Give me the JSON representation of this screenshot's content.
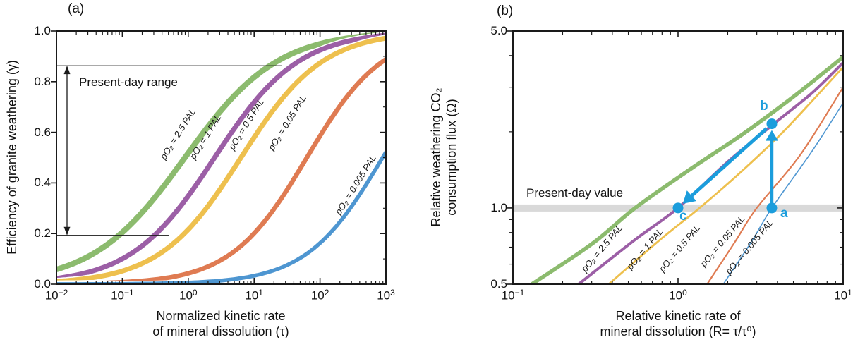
{
  "figure": {
    "background": "#ffffff",
    "text_color": "#111111",
    "axis_color": "#1a1a1a"
  },
  "colors": {
    "green": "#8CBB6E",
    "purple": "#9C5FA6",
    "yellow": "#EEC04E",
    "orange": "#DF7B52",
    "blue": "#4E96D1",
    "annotation_blue": "#1B9DDC",
    "band_gray": "#D9D9D9",
    "halo_white": "#ffffff"
  },
  "panel_a": {
    "letter": "(a)",
    "ylabel": "Efficiency of granite weathering (γ)",
    "xlabel_line1": "Normalized kinetic rate",
    "xlabel_line2": "of mineral dissolution (τ)",
    "range_label": "Present-day range",
    "range": {
      "low": 0.2,
      "high": 0.86
    },
    "yticks": [
      {
        "v": 1.0,
        "label": "1.0"
      },
      {
        "v": 0.8,
        "label": "0.8"
      },
      {
        "v": 0.6,
        "label": "0.6"
      },
      {
        "v": 0.4,
        "label": "0.4"
      },
      {
        "v": 0.2,
        "label": "0.2"
      },
      {
        "v": 0.0,
        "label": "0.0"
      }
    ],
    "xticks": [
      {
        "exp": -2,
        "base": "10",
        "sup": "−2"
      },
      {
        "exp": -1,
        "base": "10",
        "sup": "−1"
      },
      {
        "exp": 0,
        "base": "10",
        "sup": "0"
      },
      {
        "exp": 1,
        "base": "10",
        "sup": "1"
      },
      {
        "exp": 2,
        "base": "10",
        "sup": "2"
      },
      {
        "exp": 3,
        "base": "10",
        "sup": "3"
      }
    ],
    "curves": [
      {
        "id": "pO2-2.5PAL",
        "label": "pO₂ = 2.5 PAL",
        "color_key": "green",
        "mid": -0.05,
        "k": 0.62,
        "lw": 8.0
      },
      {
        "id": "pO2-1PAL",
        "label": "pO₂ = 1 PAL",
        "color_key": "purple",
        "mid": 0.4,
        "k": 0.68,
        "lw": 7.0
      },
      {
        "id": "pO2-0.5PAL",
        "label": "pO₂ = 0.5 PAL",
        "color_key": "yellow",
        "mid": 0.8,
        "k": 0.7,
        "lw": 7.0
      },
      {
        "id": "pO2-0.05PAL",
        "label": "pO₂ = 0.05 PAL",
        "color_key": "orange",
        "mid": 1.8,
        "k": 0.75,
        "lw": 6.5
      },
      {
        "id": "pO2-0.005PAL",
        "label": "pO₂ = 0.005 PAL",
        "color_key": "blue",
        "mid": 2.95,
        "k": 0.75,
        "lw": 5.5
      }
    ]
  },
  "panel_b": {
    "letter": "(b)",
    "ylabel_line1": "Relative weathering CO₂",
    "ylabel_line2": "consumption flux (Ω)",
    "xlabel_line1": "Relative kinetic rate of",
    "xlabel_line2": "mineral dissolution (R= τ/τ⁰)",
    "band_label": "Present-day value",
    "band_value": 1.0,
    "yticks": [
      {
        "v": 5.0,
        "label": "5.0"
      },
      {
        "v": 1.0,
        "label": "1.0"
      },
      {
        "v": 0.5,
        "label": "0.5"
      }
    ],
    "xticks": [
      {
        "exp": -1,
        "base": "10",
        "sup": "−1"
      },
      {
        "exp": 0,
        "base": "10",
        "sup": "0"
      },
      {
        "exp": 1,
        "base": "10",
        "sup": "1"
      }
    ],
    "curves": [
      {
        "id": "pO2-2.5PAL",
        "label": "pO₂ = 2.5 PAL",
        "color_key": "green",
        "lw": 5.5,
        "points": [
          [
            0.13,
            0.5
          ],
          [
            0.3,
            0.72
          ],
          [
            0.55,
            1.0
          ],
          [
            1.2,
            1.43
          ],
          [
            2.5,
            1.97
          ],
          [
            5,
            2.75
          ],
          [
            10,
            3.95
          ]
        ]
      },
      {
        "id": "pO2-1PAL",
        "label": "pO₂ = 1 PAL",
        "color_key": "purple",
        "lw": 4.0,
        "points": [
          [
            0.25,
            0.5
          ],
          [
            0.55,
            0.75
          ],
          [
            1.0,
            1.0
          ],
          [
            2.0,
            1.52
          ],
          [
            3.7,
            2.12
          ],
          [
            6.5,
            2.85
          ],
          [
            10,
            3.75
          ]
        ]
      },
      {
        "id": "pO2-0.5PAL",
        "label": "pO₂ = 0.5 PAL",
        "color_key": "yellow",
        "lw": 2.8,
        "points": [
          [
            0.38,
            0.5
          ],
          [
            0.8,
            0.76
          ],
          [
            1.35,
            1.0
          ],
          [
            2.5,
            1.42
          ],
          [
            4.5,
            2.05
          ],
          [
            10,
            3.6
          ]
        ]
      },
      {
        "id": "pO2-0.05PAL",
        "label": "pO₂ = 0.05 PAL",
        "color_key": "orange",
        "lw": 2.2,
        "points": [
          [
            1.5,
            0.5
          ],
          [
            2.2,
            0.73
          ],
          [
            3.0,
            1.0
          ],
          [
            5.5,
            1.62
          ],
          [
            10,
            3.0
          ]
        ]
      },
      {
        "id": "pO2-0.005PAL",
        "label": "pO₂ = 0.005 PAL",
        "color_key": "blue",
        "lw": 1.6,
        "points": [
          [
            1.88,
            0.5
          ],
          [
            2.8,
            0.74
          ],
          [
            3.7,
            1.0
          ],
          [
            6.5,
            1.68
          ],
          [
            10,
            2.6
          ]
        ]
      }
    ],
    "points": [
      {
        "name": "a",
        "R": 3.7,
        "omega": 1.0
      },
      {
        "name": "b",
        "R": 3.7,
        "omega": 2.15
      },
      {
        "name": "c",
        "R": 1.0,
        "omega": 1.0
      }
    ]
  },
  "chart_data": [
    {
      "type": "line",
      "title": "(a)",
      "xlabel": "Normalized kinetic rate of mineral dissolution (τ)",
      "ylabel": "Efficiency of granite weathering (γ)",
      "xscale": "log",
      "xlim": [
        0.01,
        1000
      ],
      "ylim": [
        0.0,
        1.0
      ],
      "grid": false,
      "legend": "labels drawn along curves",
      "x": [
        0.01,
        0.1,
        1,
        10,
        100,
        1000
      ],
      "series": [
        {
          "name": "pO₂ = 2.5 PAL",
          "y": [
            0.06,
            0.21,
            0.52,
            0.82,
            0.95,
            0.98
          ]
        },
        {
          "name": "pO₂ = 1 PAL",
          "y": [
            0.02,
            0.1,
            0.35,
            0.72,
            0.92,
            0.98
          ]
        },
        {
          "name": "pO₂ = 0.5 PAL",
          "y": [
            0.01,
            0.05,
            0.22,
            0.58,
            0.87,
            0.97
          ]
        },
        {
          "name": "pO₂ = 0.05 PAL",
          "y": [
            0.001,
            0.008,
            0.04,
            0.2,
            0.59,
            0.89
          ]
        },
        {
          "name": "pO₂ = 0.005 PAL",
          "y": [
            0.0,
            0.001,
            0.006,
            0.03,
            0.16,
            0.52
          ]
        }
      ],
      "annotations": [
        "Present-day range: γ ≈ 0.2 – 0.86 (double-headed arrow)"
      ]
    },
    {
      "type": "line",
      "title": "(b)",
      "xlabel": "Relative kinetic rate of mineral dissolution (R= τ/τ⁰)",
      "ylabel": "Relative weathering CO₂ consumption flux (Ω)",
      "xscale": "log",
      "yscale": "log",
      "xlim": [
        0.1,
        10
      ],
      "ylim": [
        0.5,
        5.0
      ],
      "grid": false,
      "series": [
        {
          "name": "pO₂ = 2.5 PAL",
          "x": [
            0.13,
            0.3,
            0.55,
            1.2,
            2.5,
            5,
            10
          ],
          "y": [
            0.5,
            0.72,
            1.0,
            1.43,
            1.97,
            2.75,
            3.95
          ]
        },
        {
          "name": "pO₂ = 1 PAL",
          "x": [
            0.25,
            0.55,
            1.0,
            2.0,
            3.7,
            6.5,
            10
          ],
          "y": [
            0.5,
            0.75,
            1.0,
            1.52,
            2.12,
            2.85,
            3.75
          ]
        },
        {
          "name": "pO₂ = 0.5 PAL",
          "x": [
            0.38,
            0.8,
            1.35,
            2.5,
            4.5,
            10
          ],
          "y": [
            0.5,
            0.76,
            1.0,
            1.42,
            2.05,
            3.6
          ]
        },
        {
          "name": "pO₂ = 0.05 PAL",
          "x": [
            1.5,
            2.2,
            3.0,
            5.5,
            10
          ],
          "y": [
            0.5,
            0.73,
            1.0,
            1.62,
            3.0
          ]
        },
        {
          "name": "pO₂ = 0.005 PAL",
          "x": [
            1.88,
            2.8,
            3.7,
            6.5,
            10
          ],
          "y": [
            0.5,
            0.74,
            1.0,
            1.68,
            2.6
          ]
        }
      ],
      "annotations": [
        "Present-day value: horizontal gray band at Ω = 1.0",
        "point a at (R≈3.7, Ω≈1.0) on pO₂ = 0.005 PAL curve",
        "point b at (R≈3.7, Ω≈2.15) on pO₂ = 1 PAL curve",
        "point c at (R≈1.0, Ω≈1.0) on pO₂ = 1 PAL curve",
        "blue arrow a→b (vertical), blue arrow b→c (diagonal)"
      ]
    }
  ]
}
